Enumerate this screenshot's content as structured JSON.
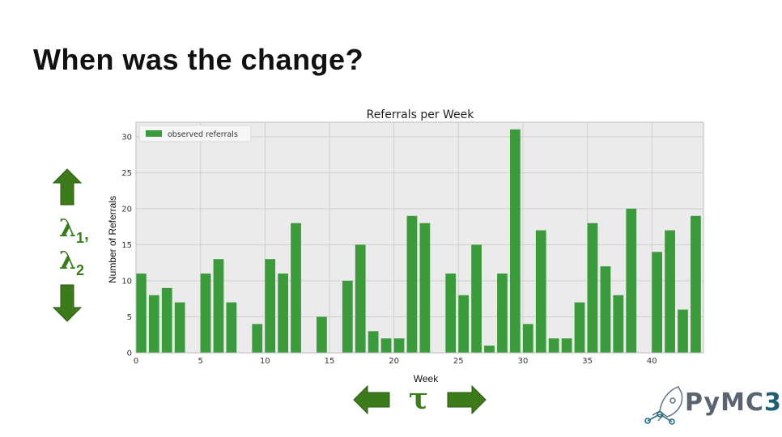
{
  "slide": {
    "title": "When was the change?"
  },
  "annotations": {
    "lambda_label": "λ",
    "lambda_sub_1": "1",
    "lambda_comma": ",",
    "lambda_sub_2": "2",
    "tau_label": "τ"
  },
  "logo": {
    "text_py": "PyMC",
    "text_ver": "3"
  },
  "colors": {
    "bar": "#3b9a3b",
    "arrow": "#3c7a1c",
    "plot_bg": "#ebebeb",
    "grid": "#cfcfcf"
  },
  "chart_data": {
    "type": "bar",
    "title": "Referrals per Week",
    "xlabel": "Week",
    "ylabel": "Number of Referrals",
    "legend": "observed referrals",
    "legend_position": "top-left",
    "grid": true,
    "xlim": [
      0,
      44
    ],
    "ylim": [
      0,
      32
    ],
    "xticks": [
      0,
      5,
      10,
      15,
      20,
      25,
      30,
      35,
      40
    ],
    "yticks": [
      0,
      5,
      10,
      15,
      20,
      25,
      30
    ],
    "x": [
      0,
      1,
      2,
      3,
      4,
      5,
      6,
      7,
      8,
      9,
      10,
      11,
      12,
      13,
      14,
      15,
      16,
      17,
      18,
      19,
      20,
      21,
      22,
      23,
      24,
      25,
      26,
      27,
      28,
      29,
      30,
      31,
      32,
      33,
      34,
      35,
      36,
      37,
      38,
      39,
      40,
      41,
      42,
      43
    ],
    "values": [
      11,
      8,
      9,
      7,
      0,
      11,
      13,
      7,
      0,
      4,
      13,
      11,
      18,
      0,
      5,
      0,
      10,
      15,
      3,
      2,
      2,
      19,
      18,
      0,
      11,
      8,
      15,
      1,
      11,
      31,
      4,
      17,
      2,
      2,
      7,
      18,
      12,
      8,
      20,
      0,
      14,
      17,
      6,
      19
    ]
  }
}
